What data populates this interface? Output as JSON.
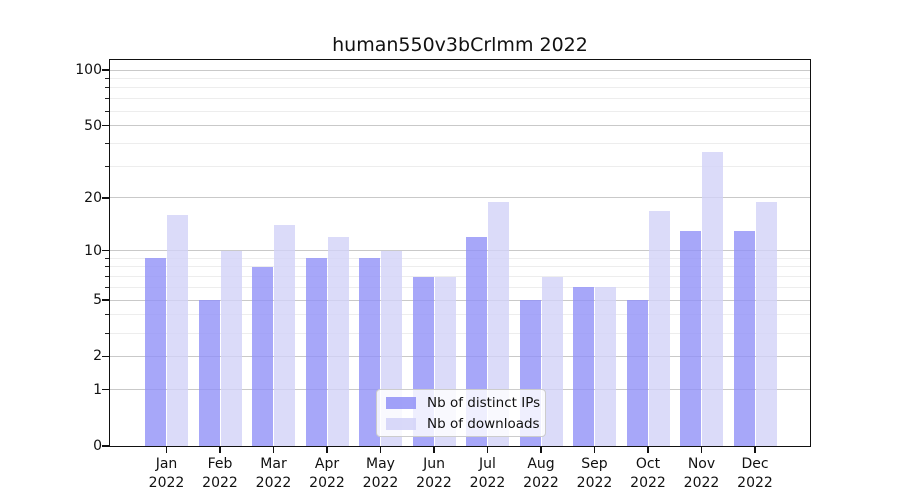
{
  "figure": {
    "title": "human550v3bCrlmm 2022"
  },
  "chart_data": {
    "type": "bar",
    "title": "human550v3bCrlmm 2022",
    "categories": [
      "Jan 2022",
      "Feb 2022",
      "Mar 2022",
      "Apr 2022",
      "May 2022",
      "Jun 2022",
      "Jul 2022",
      "Aug 2022",
      "Sep 2022",
      "Oct 2022",
      "Nov 2022",
      "Dec 2022"
    ],
    "x_tick_months": [
      "Jan",
      "Feb",
      "Mar",
      "Apr",
      "May",
      "Jun",
      "Jul",
      "Aug",
      "Sep",
      "Oct",
      "Nov",
      "Dec"
    ],
    "x_tick_year": "2022",
    "series": [
      {
        "name": "Nb of distinct IPs",
        "color": "#9191f7",
        "values": [
          9,
          5,
          8,
          9,
          9,
          7,
          12,
          5,
          6,
          5,
          13,
          13
        ]
      },
      {
        "name": "Nb of downloads",
        "color": "#d2d2f8",
        "values": [
          16,
          10,
          14,
          12,
          10,
          7,
          19,
          7,
          6,
          17,
          36,
          19
        ]
      }
    ],
    "xlabel": "",
    "ylabel": "",
    "y_scale": "log(1+x)",
    "y_major_ticks": [
      0,
      1,
      2,
      5,
      10,
      20,
      50,
      100
    ],
    "y_minor_ticks": [
      3,
      4,
      6,
      7,
      8,
      9,
      30,
      40,
      60,
      70,
      80,
      90
    ],
    "ylim": [
      0,
      113
    ],
    "grid": true,
    "legend_position": "lower center"
  },
  "legend": {
    "items": [
      {
        "label": "Nb of distinct IPs"
      },
      {
        "label": "Nb of downloads"
      }
    ]
  }
}
